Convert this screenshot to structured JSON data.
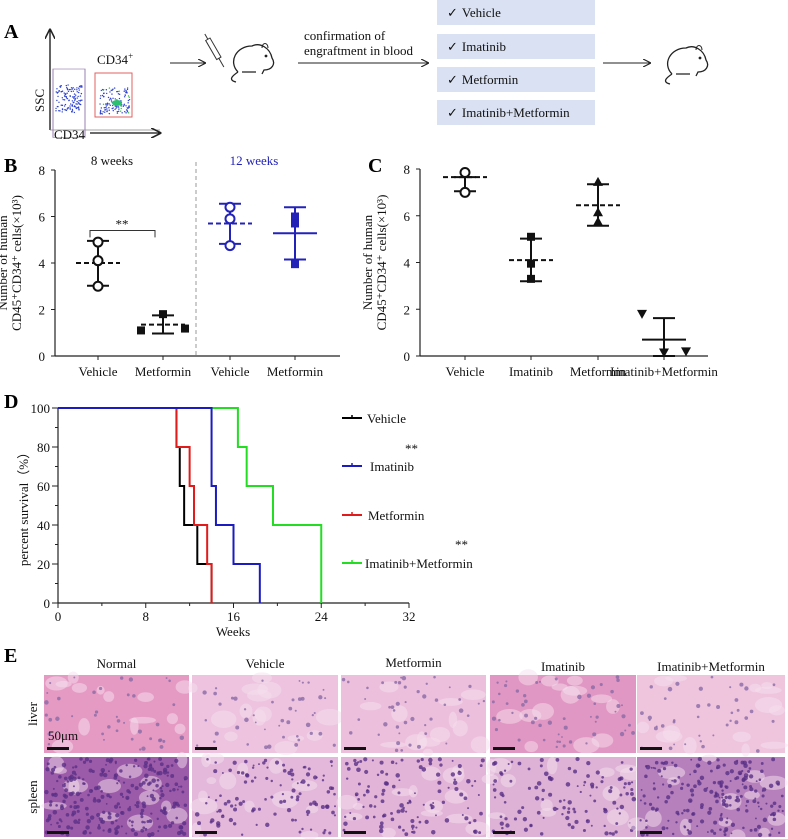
{
  "panel_labels": {
    "a": "A",
    "b": "B",
    "c": "C",
    "d": "D",
    "e": "E"
  },
  "panel_a": {
    "flow_y_label": "SSC",
    "flow_x_label": "CD34",
    "gate_label": "CD34",
    "gate_label_sup": "+",
    "arrow_text_line1": "confirmation of",
    "arrow_text_line2": "engraftment in blood",
    "check": "✓",
    "treatments": [
      "Vehicle",
      "Imatinib",
      "Metformin",
      "Imatinib+Metformin"
    ],
    "colors": {
      "box": "#d9e1f2",
      "gate_left": "#9a7fb0",
      "gate_right": "#e06060",
      "dots": "#2a3fd0"
    }
  },
  "chart_data": [
    {
      "id": "B",
      "type": "scatter-dot",
      "ylabel_line1": "Number of  human",
      "ylabel_line2": "CD45⁺CD34⁺ cells(×10³)",
      "ylim": [
        0,
        8
      ],
      "yticks": [
        "0",
        "2",
        "4",
        "6",
        "8"
      ],
      "group_headers": [
        {
          "text": "8 weeks",
          "color": "#111111"
        },
        {
          "text": "12 weeks",
          "color": "#2323b8"
        }
      ],
      "significance": "**",
      "groups": [
        {
          "label": "Vehicle",
          "period": "8 weeks",
          "marker": "open-circle",
          "color": "#111111",
          "points": [
            4.9,
            4.1,
            3.0
          ],
          "mean": 4.0,
          "low": 3.02,
          "high": 4.95,
          "mean_style": "dashed"
        },
        {
          "label": "Metformin",
          "period": "8 weeks",
          "marker": "square",
          "color": "#111111",
          "points": [
            1.1,
            1.8,
            1.18
          ],
          "mean": 1.35,
          "low": 0.97,
          "high": 1.75,
          "mean_style": "dashed"
        },
        {
          "label": "Vehicle",
          "period": "12 weeks",
          "marker": "open-circle",
          "color": "#2323b8",
          "points": [
            6.4,
            5.9,
            4.75
          ],
          "mean": 5.7,
          "low": 4.82,
          "high": 6.55,
          "mean_style": "dashed"
        },
        {
          "label": "Metformin",
          "period": "12 weeks",
          "marker": "square",
          "color": "#2323b8",
          "points": [
            6.0,
            5.7,
            3.95
          ],
          "mean": 5.28,
          "low": 4.15,
          "high": 6.4,
          "mean_style": "solid"
        }
      ]
    },
    {
      "id": "C",
      "type": "scatter-dot",
      "ylabel_line1": "Number of  human",
      "ylabel_line2": "CD45⁺CD34⁺ cells(×10³)",
      "ylim": [
        0,
        8
      ],
      "yticks": [
        "0",
        "2",
        "4",
        "6",
        "8"
      ],
      "groups": [
        {
          "label": "Vehicle",
          "marker": "open-circle",
          "color": "#111111",
          "points": [
            7.85,
            7.0
          ],
          "mean": 7.65,
          "low": 7.05,
          "high": 7.65,
          "mean_style": "dashed"
        },
        {
          "label": "Imatinib",
          "marker": "square",
          "color": "#111111",
          "points": [
            5.1,
            3.95,
            3.3
          ],
          "mean": 4.1,
          "low": 3.2,
          "high": 5.02,
          "mean_style": "dashed"
        },
        {
          "label": "Metformin",
          "marker": "triangle-up",
          "color": "#111111",
          "points": [
            7.45,
            6.15,
            5.75
          ],
          "mean": 6.45,
          "low": 5.57,
          "high": 7.35,
          "mean_style": "dashed"
        },
        {
          "label": "Imatinib+Metformin",
          "marker": "triangle-down",
          "color": "#111111",
          "points": [
            1.8,
            0.15,
            0.2
          ],
          "mean": 0.7,
          "low": 0.0,
          "high": 1.62,
          "mean_style": "solid"
        }
      ]
    },
    {
      "id": "D",
      "type": "line",
      "xlabel": "Weeks",
      "ylabel": "percent survival（%）",
      "xlim": [
        0,
        32
      ],
      "ylim": [
        0,
        100
      ],
      "xticks": [
        "0",
        "8",
        "16",
        "24",
        "32"
      ],
      "yticks": [
        "0",
        "20",
        "40",
        "60",
        "80",
        "100"
      ],
      "legend_position": "right",
      "series": [
        {
          "name": "Vehicle",
          "color": "#000000",
          "sig": "",
          "steps": [
            [
              0,
              100
            ],
            [
              10.8,
              80
            ],
            [
              11.1,
              60
            ],
            [
              11.5,
              40
            ],
            [
              12.7,
              20
            ],
            [
              14.0,
              0
            ]
          ]
        },
        {
          "name": "Imatinib",
          "color": "#1b1bc0",
          "sig": "**",
          "steps": [
            [
              0,
              100
            ],
            [
              14.0,
              60
            ],
            [
              14.4,
              40
            ],
            [
              16.0,
              20
            ],
            [
              18.4,
              0
            ]
          ]
        },
        {
          "name": "Metformin",
          "color": "#e01b1b",
          "sig": "",
          "steps": [
            [
              0,
              100
            ],
            [
              10.8,
              80
            ],
            [
              12.0,
              60
            ],
            [
              12.4,
              40
            ],
            [
              13.6,
              20
            ],
            [
              14.0,
              0
            ]
          ]
        },
        {
          "name": "Imatinib+Metformin",
          "color": "#22dd22",
          "sig": "**",
          "steps": [
            [
              0,
              100
            ],
            [
              16.4,
              80
            ],
            [
              17.2,
              60
            ],
            [
              19.6,
              40
            ],
            [
              24.0,
              0
            ]
          ]
        }
      ]
    }
  ],
  "panel_e": {
    "columns": [
      "Normal",
      "Vehicle",
      "Metformin",
      "Imatinib",
      "Imatinib+Metformin"
    ],
    "rows": [
      "liver",
      "spleen"
    ],
    "scale_bar": "50μm"
  }
}
